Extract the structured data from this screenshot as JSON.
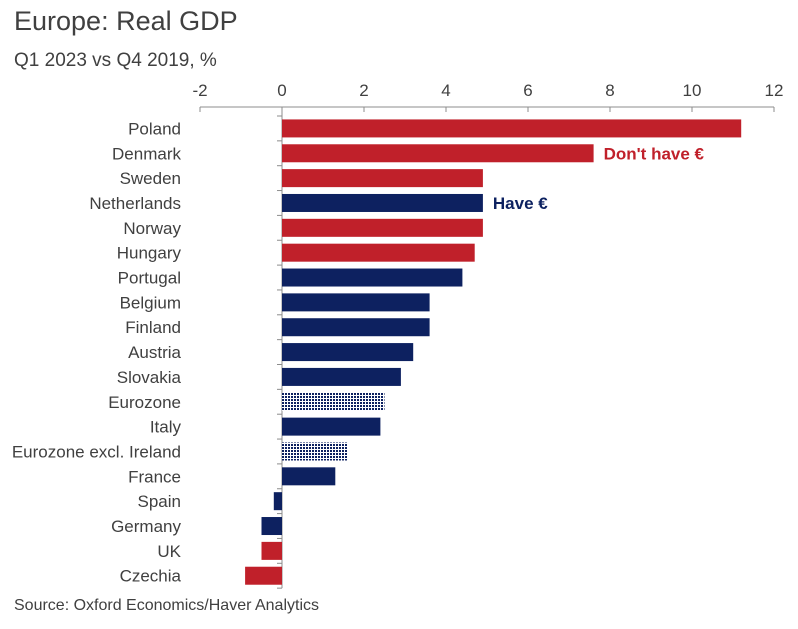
{
  "title": "Europe: Real GDP",
  "subtitle": "Q1 2023 vs Q4 2019, %",
  "source": "Source: Oxford Economics/Haver Analytics",
  "colors": {
    "no_euro": "#c0202a",
    "euro": "#0d2160",
    "aggregate": "#0d2160",
    "axis": "#8c8c8c",
    "text": "#404040"
  },
  "chart_data": {
    "type": "bar",
    "orientation": "horizontal",
    "xlim": [
      -2,
      12
    ],
    "x_ticks": [
      -2,
      0,
      2,
      4,
      6,
      8,
      10,
      12
    ],
    "tick_position": "top",
    "grid": false,
    "categories": [
      "Poland",
      "Denmark",
      "Sweden",
      "Netherlands",
      "Norway",
      "Hungary",
      "Portugal",
      "Belgium",
      "Finland",
      "Austria",
      "Slovakia",
      "Eurozone",
      "Italy",
      "Eurozone excl. Ireland",
      "France",
      "Spain",
      "Germany",
      "UK",
      "Czechia"
    ],
    "values": [
      11.2,
      7.6,
      4.9,
      4.9,
      4.9,
      4.7,
      4.4,
      3.6,
      3.6,
      3.2,
      2.9,
      2.5,
      2.4,
      1.6,
      1.3,
      -0.2,
      -0.5,
      -0.5,
      -0.9
    ],
    "groups": [
      "no_euro",
      "no_euro",
      "no_euro",
      "euro",
      "no_euro",
      "no_euro",
      "euro",
      "euro",
      "euro",
      "euro",
      "euro",
      "aggregate",
      "euro",
      "aggregate",
      "euro",
      "euro",
      "euro",
      "no_euro",
      "no_euro"
    ],
    "annotations": [
      {
        "text": "Don't have €",
        "group": "no_euro",
        "category": "Denmark"
      },
      {
        "text": "Have €",
        "group": "euro",
        "category": "Netherlands"
      }
    ]
  }
}
